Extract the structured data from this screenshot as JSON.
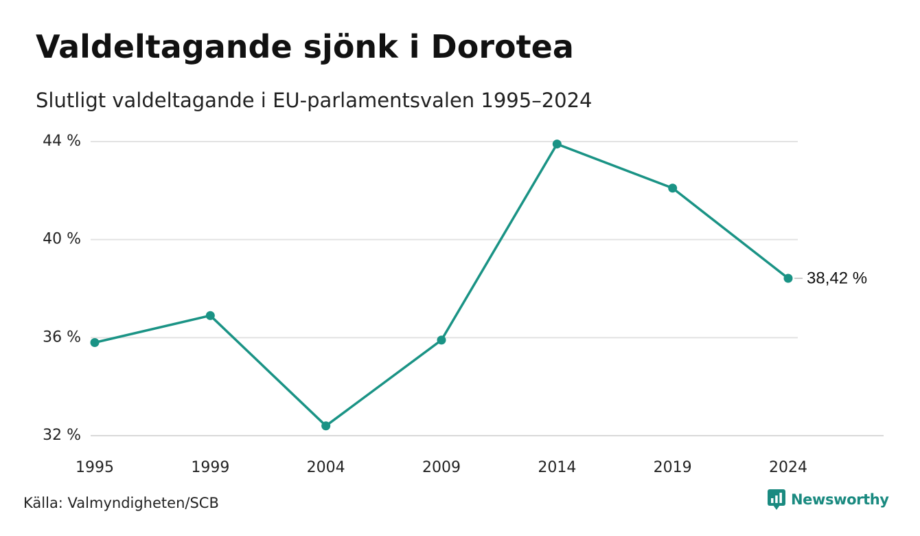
{
  "title": "Valdeltagande sjönk i Dorotea",
  "subtitle": "Slutligt valdeltagande i EU-parlamentsvalen 1995–2024",
  "source": "Källa: Valmyndigheten/SCB",
  "brand": {
    "name": "Newsworthy",
    "icon": "newsworthy-logo-icon"
  },
  "colors": {
    "line": "#1a9385",
    "grid": "#e2e2e2",
    "axis": "#cccccc",
    "brand": "#1a8a80"
  },
  "chart_data": {
    "type": "line",
    "title": "Valdeltagande sjönk i Dorotea",
    "subtitle": "Slutligt valdeltagande i EU-parlamentsvalen 1995–2024",
    "xlabel": "",
    "ylabel": "",
    "categories": [
      "1995",
      "1999",
      "2004",
      "2009",
      "2014",
      "2019",
      "2024"
    ],
    "values": [
      35.8,
      36.9,
      32.4,
      35.9,
      43.9,
      42.1,
      38.42
    ],
    "ylim": [
      32,
      44
    ],
    "yticks": [
      32,
      36,
      40,
      44
    ],
    "ytick_labels": [
      "32 %",
      "36 %",
      "40 %",
      "44 %"
    ],
    "end_label": "38,42 %",
    "grid": true,
    "legend": "none"
  }
}
